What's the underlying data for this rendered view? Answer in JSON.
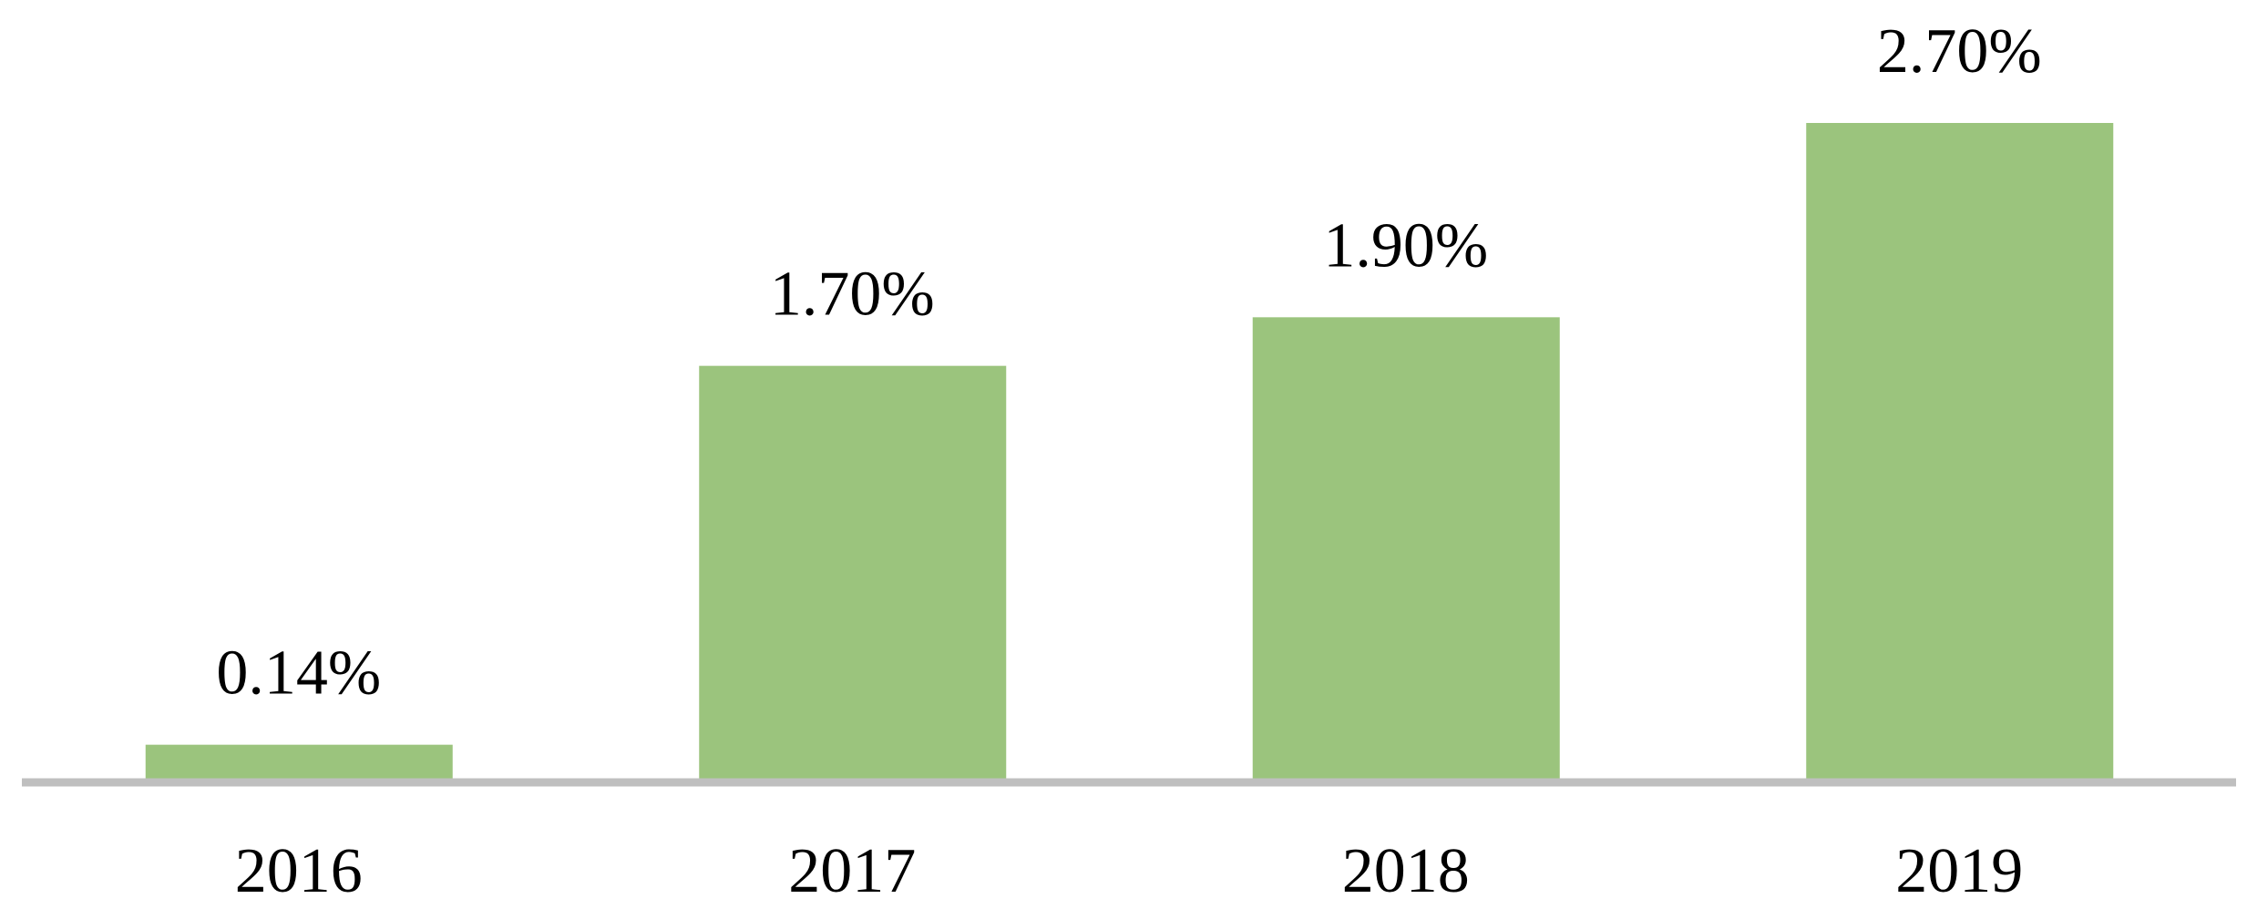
{
  "chart_data": {
    "type": "bar",
    "categories": [
      "2016",
      "2017",
      "2018",
      "2019"
    ],
    "values": [
      0.14,
      1.7,
      1.9,
      2.7
    ],
    "value_labels": [
      "0.14%",
      "1.70%",
      "1.90%",
      "2.70%"
    ],
    "color": "#9bc47d"
  }
}
